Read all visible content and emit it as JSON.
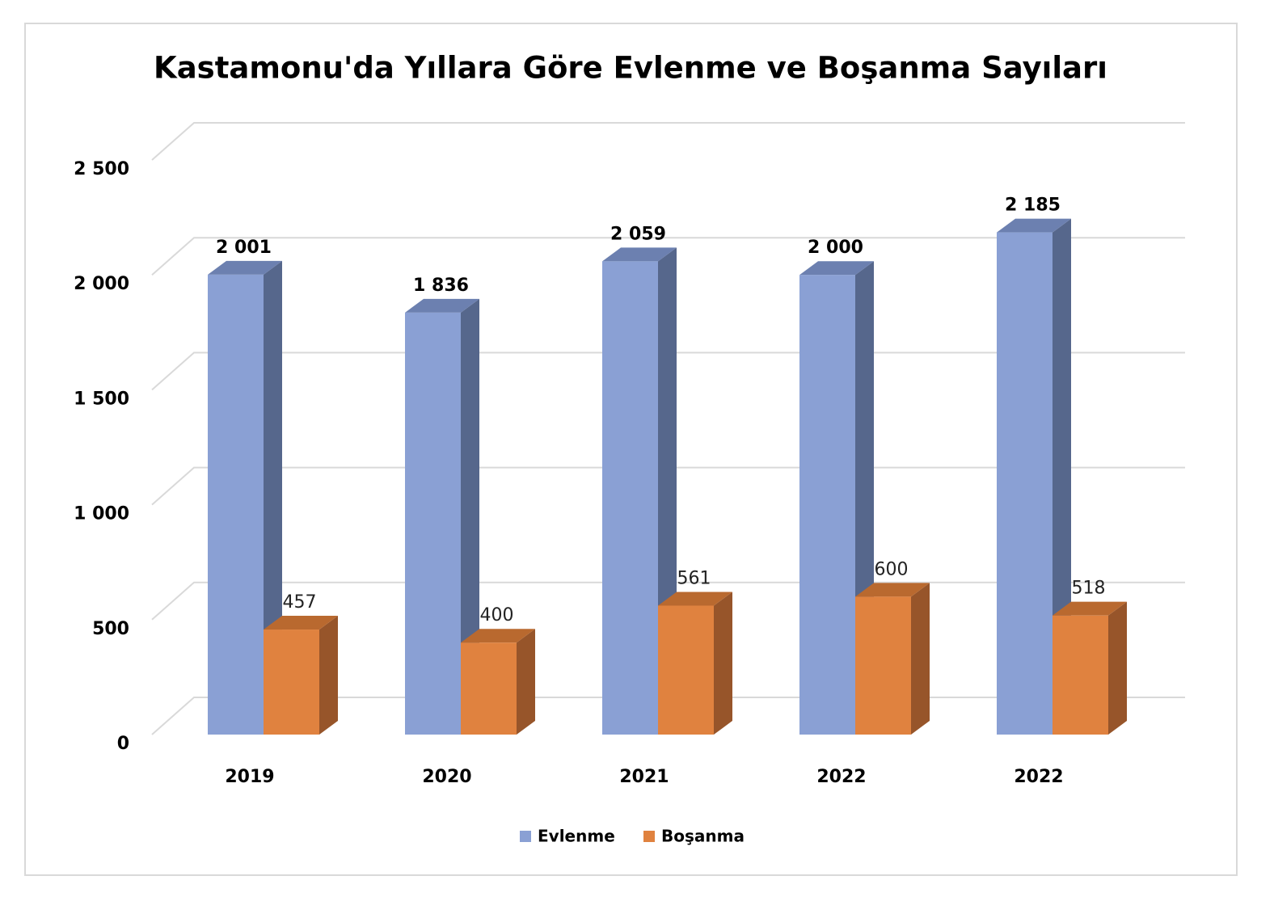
{
  "chart_data": {
    "type": "bar3d",
    "title": "Kastamonu'da Yıllara Göre Evlenme ve Boşanma Sayıları",
    "categories": [
      "2019",
      "2020",
      "2021",
      "2022",
      "2022"
    ],
    "series": [
      {
        "name": "Evlenme",
        "color": "#8aa0d4",
        "side_color": "#56678c",
        "top_color": "#6c80b0",
        "values": [
          2001,
          1836,
          2059,
          2000,
          2185
        ],
        "value_labels": [
          "2 001",
          "1 836",
          "2 059",
          "2 000",
          "2 185"
        ]
      },
      {
        "name": "Boşanma",
        "color": "#e0823f",
        "side_color": "#97552a",
        "top_color": "#b9692f",
        "values": [
          457,
          400,
          561,
          600,
          518
        ]
      }
    ],
    "ylim": [
      0,
      2500
    ],
    "yticks": [
      0,
      500,
      {
        "value": 1000,
        "label": "1 000"
      },
      {
        "value": 1500,
        "label": "1 500"
      },
      {
        "value": 2000,
        "label": "2 000"
      },
      {
        "value": 2500,
        "label": "2 500"
      }
    ],
    "grid": true,
    "legend": "bottom"
  }
}
